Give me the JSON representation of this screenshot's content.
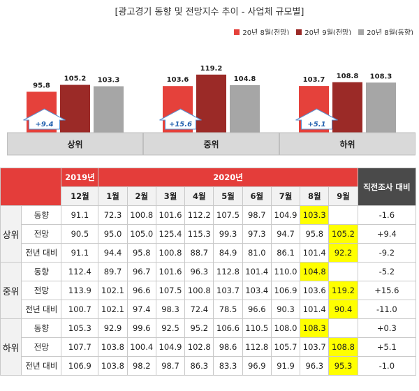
{
  "title": "[광고경기 동향 및 전망지수 추이 - 사업체 규모별]",
  "legend": [
    {
      "label": "20년 8월(전망)",
      "color": "#e5413b"
    },
    {
      "label": "20년 9월(전망)",
      "color": "#9b2a27"
    },
    {
      "label": "20년 8월(동향)",
      "color": "#a6a6a6"
    }
  ],
  "chart_data": {
    "type": "bar",
    "categories": [
      "상위",
      "중위",
      "하위"
    ],
    "series": [
      {
        "name": "20년 8월(전망)",
        "values": [
          95.8,
          103.6,
          103.7
        ]
      },
      {
        "name": "20년 9월(전망)",
        "values": [
          105.2,
          119.2,
          108.8
        ]
      },
      {
        "name": "20년 8월(동향)",
        "values": [
          103.3,
          104.8,
          108.3
        ]
      }
    ],
    "annotations": [
      "+9.4",
      "+15.6",
      "+5.1"
    ],
    "colors": [
      "#e5413b",
      "#9b2a27",
      "#a6a6a6"
    ]
  },
  "table": {
    "year_2019": "2019년",
    "year_2020": "2020년",
    "last_col": "직전조사 대비",
    "months": [
      "12월",
      "1월",
      "2월",
      "3월",
      "4월",
      "5월",
      "6월",
      "7월",
      "8월",
      "9월"
    ],
    "groups": [
      {
        "name": "상위",
        "rows": [
          {
            "label": "동향",
            "values": [
              "91.1",
              "72.3",
              "100.8",
              "101.6",
              "112.2",
              "107.5",
              "98.7",
              "104.9",
              "103.3",
              ""
            ],
            "diff": "-1.6",
            "hl": 8
          },
          {
            "label": "전망",
            "values": [
              "90.5",
              "95.0",
              "105.0",
              "125.4",
              "115.3",
              "99.3",
              "97.3",
              "94.7",
              "95.8",
              "105.2"
            ],
            "diff": "+9.4",
            "hl": 9
          },
          {
            "label": "전년 대비",
            "values": [
              "91.1",
              "94.4",
              "95.8",
              "100.8",
              "88.7",
              "84.9",
              "81.0",
              "86.1",
              "101.4",
              "92.2"
            ],
            "diff": "-9.2",
            "hl": 9
          }
        ]
      },
      {
        "name": "중위",
        "rows": [
          {
            "label": "동향",
            "values": [
              "112.4",
              "89.7",
              "96.7",
              "101.6",
              "96.3",
              "112.8",
              "101.4",
              "110.0",
              "104.8",
              ""
            ],
            "diff": "-5.2",
            "hl": 8
          },
          {
            "label": "전망",
            "values": [
              "113.9",
              "102.1",
              "96.6",
              "107.5",
              "100.8",
              "103.7",
              "103.4",
              "106.9",
              "103.6",
              "119.2"
            ],
            "diff": "+15.6",
            "hl": 9
          },
          {
            "label": "전년 대비",
            "values": [
              "100.7",
              "102.1",
              "97.4",
              "98.3",
              "72.4",
              "78.5",
              "96.6",
              "90.3",
              "101.4",
              "90.4"
            ],
            "diff": "-11.0",
            "hl": 9
          }
        ]
      },
      {
        "name": "하위",
        "rows": [
          {
            "label": "동향",
            "values": [
              "105.3",
              "92.9",
              "99.6",
              "92.5",
              "95.2",
              "106.6",
              "110.5",
              "108.0",
              "108.3",
              ""
            ],
            "diff": "+0.3",
            "hl": 8
          },
          {
            "label": "전망",
            "values": [
              "107.7",
              "103.8",
              "100.4",
              "104.9",
              "102.8",
              "98.6",
              "112.8",
              "105.7",
              "103.7",
              "108.8"
            ],
            "diff": "+5.1",
            "hl": 9
          },
          {
            "label": "전년 대비",
            "values": [
              "106.9",
              "103.8",
              "98.2",
              "98.7",
              "86.3",
              "83.3",
              "96.9",
              "91.9",
              "96.3",
              "95.3"
            ],
            "diff": "-1.0",
            "hl": 9
          }
        ]
      }
    ]
  }
}
